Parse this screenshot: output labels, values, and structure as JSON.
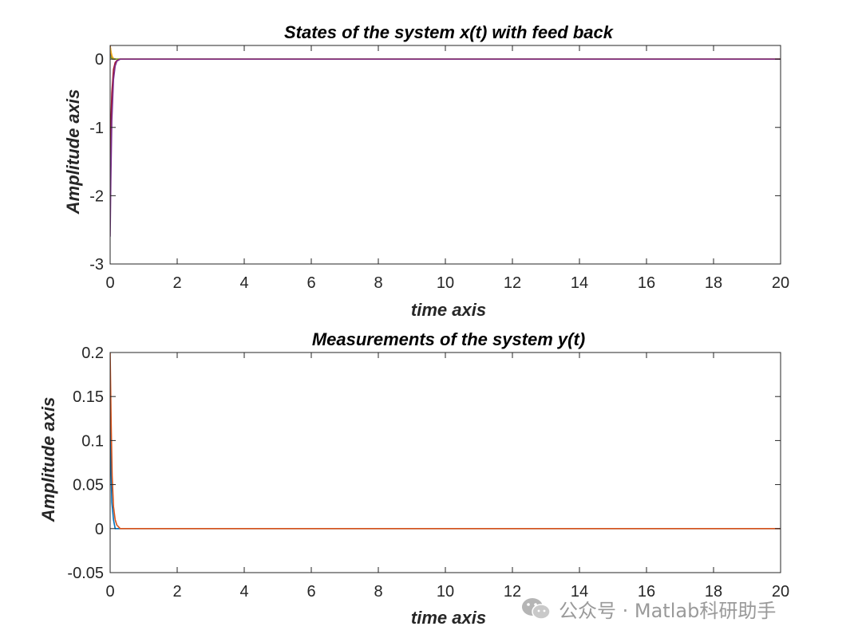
{
  "watermark": {
    "text": "公众号 · Matlab科研助手",
    "icon": "wechat-icon"
  },
  "chart_data": [
    {
      "type": "line",
      "title": "States of the system x(t) with feed back",
      "xlabel": "time axis",
      "ylabel": "Amplitude axis",
      "xlim": [
        0,
        20
      ],
      "ylim": [
        -3,
        0.2
      ],
      "xticks": [
        0,
        2,
        4,
        6,
        8,
        10,
        12,
        14,
        16,
        18,
        20
      ],
      "xtick_labels": [
        "0",
        "2",
        "4",
        "6",
        "8",
        "10",
        "12",
        "14",
        "16",
        "18",
        "20"
      ],
      "yticks": [
        -3,
        -2,
        -1,
        0
      ],
      "ytick_labels": [
        "-3",
        "-2",
        "-1",
        "0"
      ],
      "grid": false,
      "series": [
        {
          "color": "#0072BD",
          "x": [
            0,
            0.03,
            0.06,
            0.1,
            0.15,
            0.2,
            0.3,
            0.5,
            1,
            20
          ],
          "y": [
            0.15,
            0.05,
            0.01,
            0.0,
            0.0,
            0.0,
            0.0,
            0.0,
            0.0,
            0.0
          ]
        },
        {
          "color": "#D95319",
          "x": [
            0,
            0.03,
            0.06,
            0.1,
            0.15,
            0.2,
            0.3,
            0.5,
            1,
            20
          ],
          "y": [
            0.2,
            0.08,
            0.02,
            0.0,
            0.0,
            0.0,
            0.0,
            0.0,
            0.0,
            0.0
          ]
        },
        {
          "color": "#EDB120",
          "x": [
            0,
            0.03,
            0.06,
            0.1,
            0.15,
            0.2,
            0.3,
            0.5,
            1,
            20
          ],
          "y": [
            0.18,
            0.1,
            0.04,
            0.01,
            0.0,
            0.0,
            0.0,
            0.0,
            0.0,
            0.0
          ]
        },
        {
          "color": "#77AC30",
          "x": [
            0,
            0.03,
            0.06,
            0.1,
            0.15,
            0.2,
            0.3,
            0.5,
            1,
            20
          ],
          "y": [
            0.05,
            0.02,
            0.0,
            0.0,
            0.0,
            0.0,
            0.0,
            0.0,
            0.0,
            0.0
          ]
        },
        {
          "color": "#A2142F",
          "x": [
            0,
            0.02,
            0.05,
            0.1,
            0.15,
            0.2,
            0.3,
            0.5,
            1,
            20
          ],
          "y": [
            -1.5,
            -1.0,
            -0.5,
            -0.15,
            -0.05,
            -0.02,
            0.0,
            0.0,
            0.0,
            0.0
          ]
        },
        {
          "color": "#7E2F8E",
          "x": [
            0,
            0.02,
            0.05,
            0.1,
            0.15,
            0.2,
            0.3,
            0.5,
            1,
            20
          ],
          "y": [
            -2.6,
            -1.8,
            -0.9,
            -0.3,
            -0.1,
            -0.03,
            0.0,
            0.0,
            0.0,
            0.0
          ]
        }
      ]
    },
    {
      "type": "line",
      "title": "Measurements of the system y(t)",
      "xlabel": "time axis",
      "ylabel": "Amplitude axis",
      "xlim": [
        0,
        20
      ],
      "ylim": [
        -0.05,
        0.2
      ],
      "xticks": [
        0,
        2,
        4,
        6,
        8,
        10,
        12,
        14,
        16,
        18,
        20
      ],
      "xtick_labels": [
        "0",
        "2",
        "4",
        "6",
        "8",
        "10",
        "12",
        "14",
        "16",
        "18",
        "20"
      ],
      "yticks": [
        -0.05,
        0,
        0.05,
        0.1,
        0.15,
        0.2
      ],
      "ytick_labels": [
        "-0.05",
        "0",
        "0.05",
        "0.1",
        "0.15",
        "0.2"
      ],
      "grid": false,
      "series": [
        {
          "color": "#0072BD",
          "x": [
            0,
            0.02,
            0.05,
            0.1,
            0.15,
            0.2,
            0.3,
            0.5,
            1,
            20
          ],
          "y": [
            0.13,
            0.08,
            0.03,
            0.01,
            0.0,
            0.0,
            0.0,
            0.0,
            0.0,
            0.0
          ]
        },
        {
          "color": "#D95319",
          "x": [
            0,
            0.03,
            0.06,
            0.1,
            0.15,
            0.2,
            0.3,
            0.5,
            1,
            20
          ],
          "y": [
            0.2,
            0.12,
            0.06,
            0.025,
            0.01,
            0.004,
            0.0,
            0.0,
            0.0,
            0.0
          ]
        }
      ]
    }
  ]
}
